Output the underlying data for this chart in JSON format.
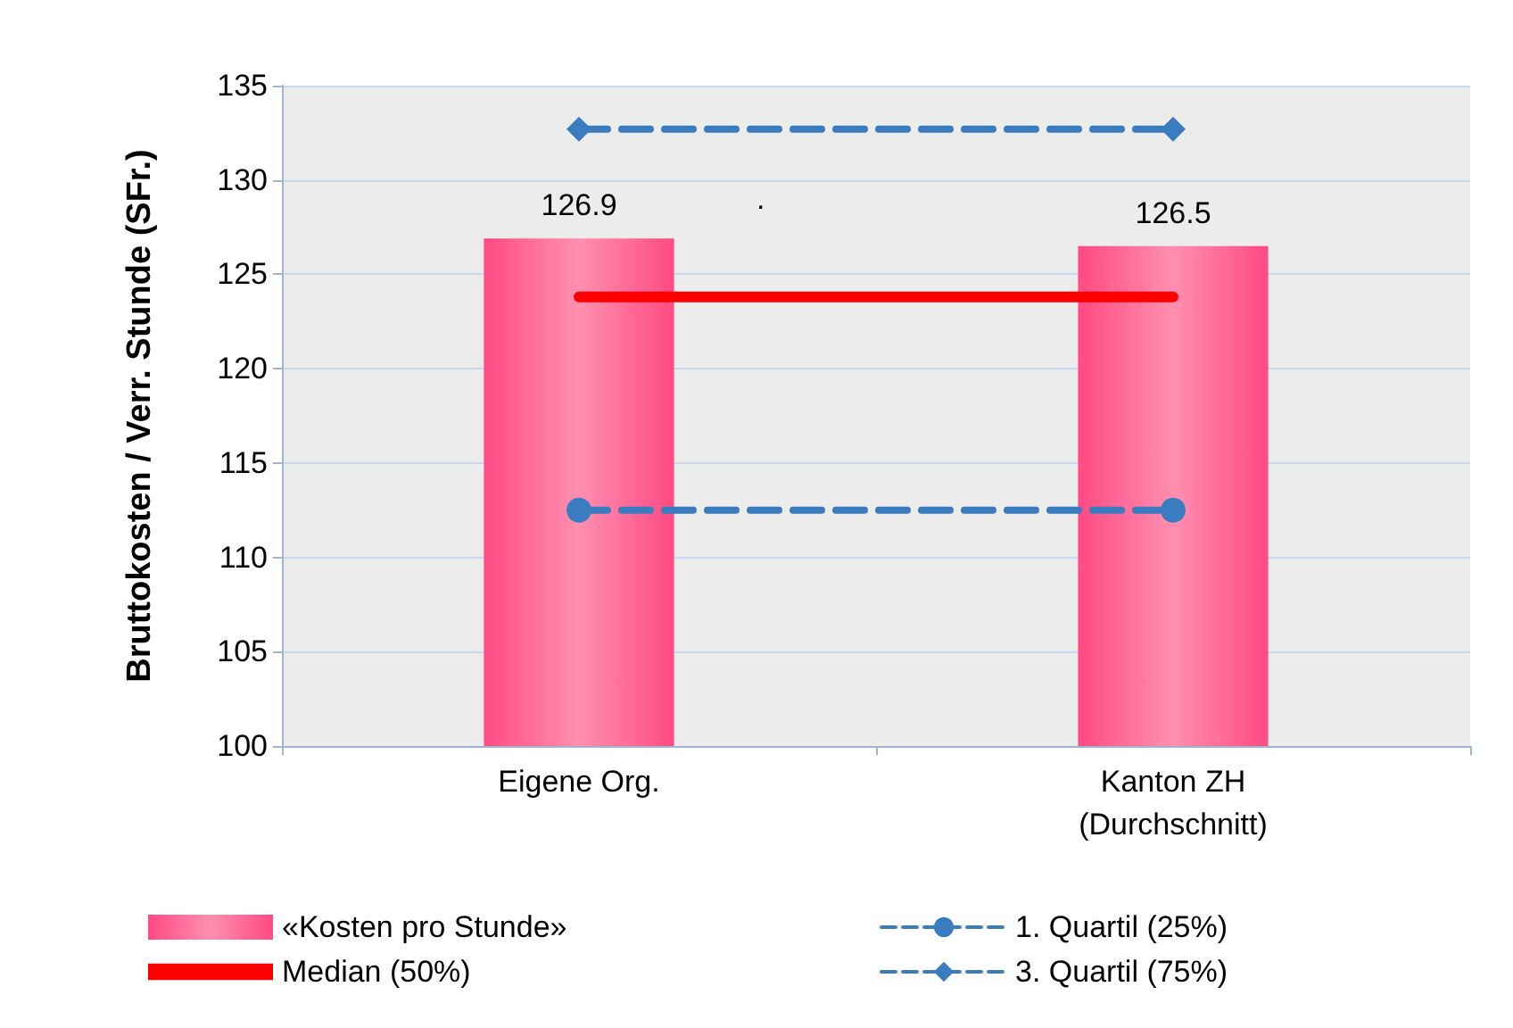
{
  "chart_data": {
    "type": "bar",
    "ylabel": "Bruttokosten / Verr. Stunde (SFr.)",
    "categories": [
      "Eigene Org.",
      "Kanton ZH\n(Durchschnitt)"
    ],
    "series": [
      {
        "name": "«Kosten pro Stunde»",
        "color": "#ff4a84",
        "values": [
          126.9,
          126.5
        ],
        "data_labels": true
      },
      {
        "name": "Median (50%)",
        "type": "line",
        "color": "#ff0000",
        "values": [
          123.8,
          123.8
        ],
        "marker": "none",
        "line_style": "solid"
      },
      {
        "name": "1. Quartil (25%)",
        "type": "line",
        "color": "#3a7cc0",
        "values": [
          112.5,
          112.5
        ],
        "marker": "circle",
        "line_style": "dashed"
      },
      {
        "name": "3. Quartil (75%)",
        "type": "line",
        "color": "#3a7cc0",
        "values": [
          132.7,
          132.7
        ],
        "marker": "diamond",
        "line_style": "dashed"
      }
    ],
    "annotations": [
      "."
    ],
    "ylim": [
      100,
      135
    ],
    "yticks": [
      100,
      105,
      110,
      115,
      120,
      125,
      130,
      135
    ],
    "grid": "y",
    "legend": "bottom"
  }
}
